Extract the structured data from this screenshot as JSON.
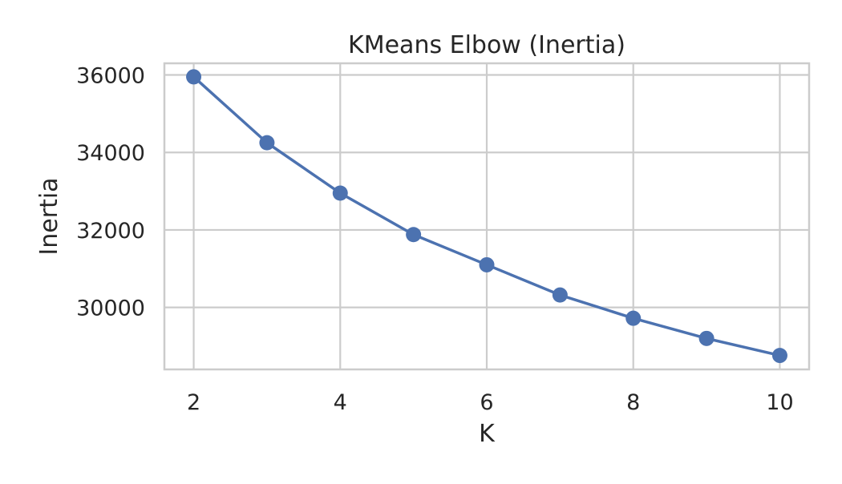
{
  "chart_data": {
    "type": "line",
    "title": "KMeans Elbow (Inertia)",
    "xlabel": "K",
    "ylabel": "Inertia",
    "x": [
      2,
      3,
      4,
      5,
      6,
      7,
      8,
      9,
      10
    ],
    "series": [
      {
        "values": [
          35950,
          34250,
          32950,
          31880,
          31100,
          30320,
          29720,
          29200,
          28760
        ]
      }
    ],
    "xlim": [
      1.6,
      10.4
    ],
    "ylim": [
      28400,
      36300
    ],
    "xticks": [
      2,
      4,
      6,
      8,
      10
    ],
    "yticks": [
      30000,
      32000,
      34000,
      36000
    ],
    "xtick_labels": [
      "2",
      "4",
      "6",
      "8",
      "10"
    ],
    "ytick_labels": [
      "30000",
      "32000",
      "34000",
      "36000"
    ],
    "grid": true,
    "colors": {
      "line": "#4c72b0",
      "grid": "#cccccc",
      "spine": "#cccccc",
      "text": "#262626"
    }
  }
}
